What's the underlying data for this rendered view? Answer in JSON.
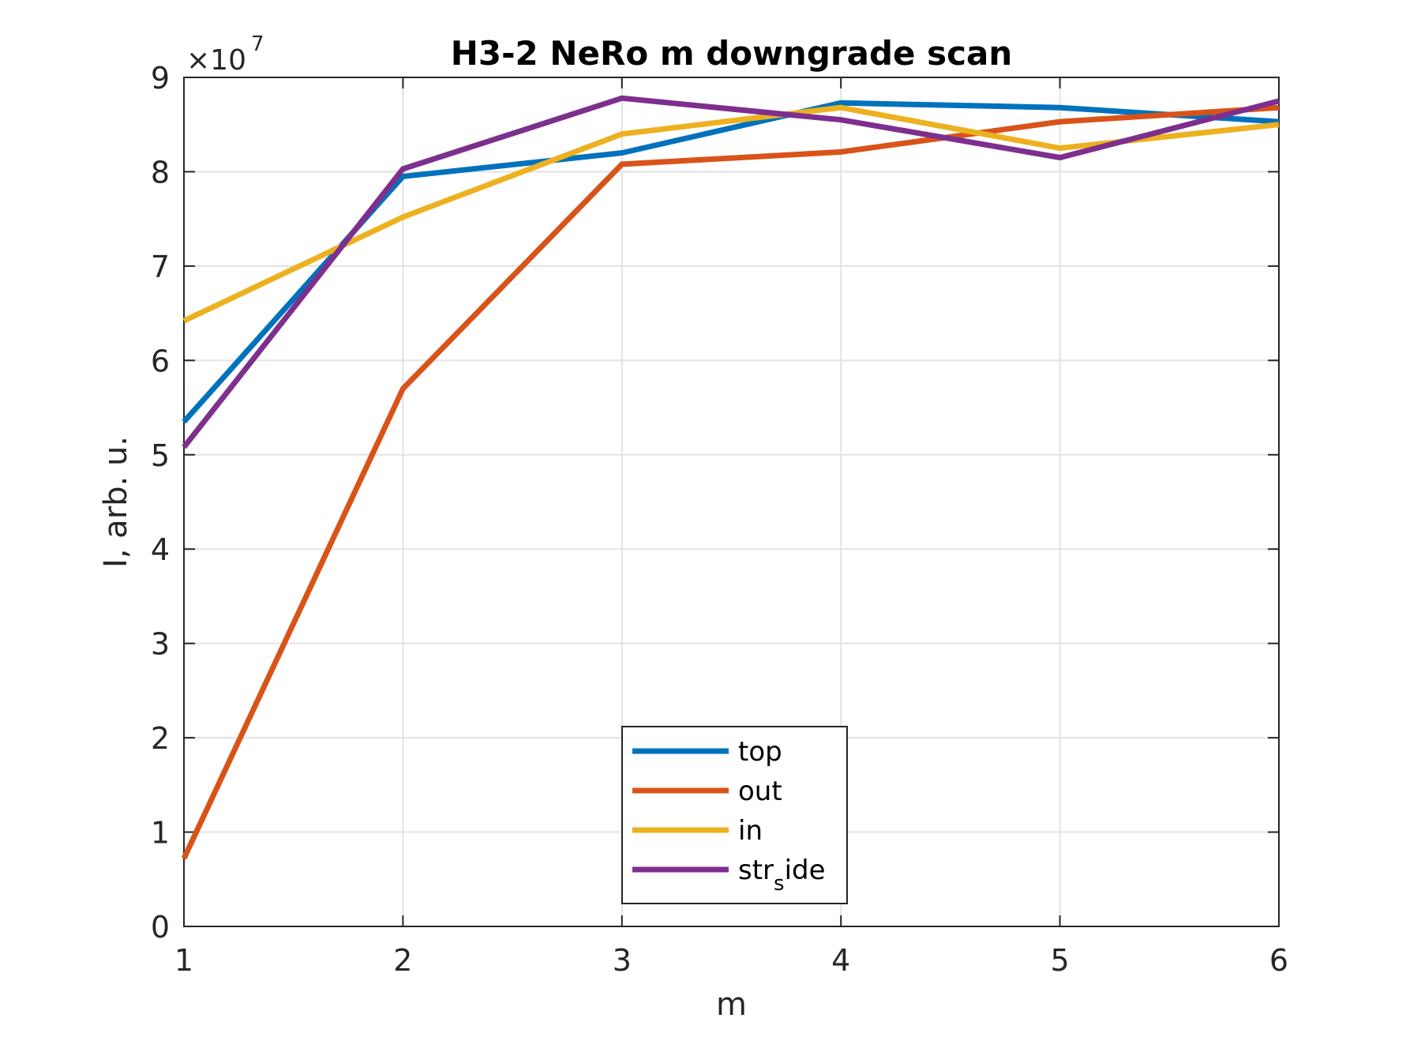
{
  "chart_data": {
    "type": "line",
    "title": "H3-2 NeRo m downgrade scan",
    "xlabel": "m",
    "ylabel": "I, arb. u.",
    "y_exponent_label": "×10",
    "y_exponent": "7",
    "xlim": [
      1,
      6
    ],
    "ylim": [
      0,
      9
    ],
    "x_ticks": [
      "1",
      "2",
      "3",
      "4",
      "5",
      "6"
    ],
    "y_ticks": [
      "0",
      "1",
      "2",
      "3",
      "4",
      "5",
      "6",
      "7",
      "8",
      "9"
    ],
    "grid": true,
    "legend_position": "bottom-center",
    "x": [
      1,
      2,
      3,
      4,
      5,
      6
    ],
    "series": [
      {
        "name": "top",
        "color": "#0072BD",
        "values": [
          5.35,
          7.95,
          8.2,
          8.73,
          8.68,
          8.53
        ]
      },
      {
        "name": "out",
        "color": "#D95319",
        "values": [
          0.72,
          5.7,
          8.08,
          8.21,
          8.53,
          8.68
        ]
      },
      {
        "name": "in",
        "color": "#EDB120",
        "values": [
          6.42,
          7.52,
          8.4,
          8.68,
          8.25,
          8.5
        ]
      },
      {
        "name": "str_side",
        "name_main": "str",
        "name_sub": "s",
        "name_tail": "ide",
        "color": "#7E2F8E",
        "values": [
          5.08,
          8.03,
          8.78,
          8.55,
          8.15,
          8.75
        ]
      }
    ]
  }
}
